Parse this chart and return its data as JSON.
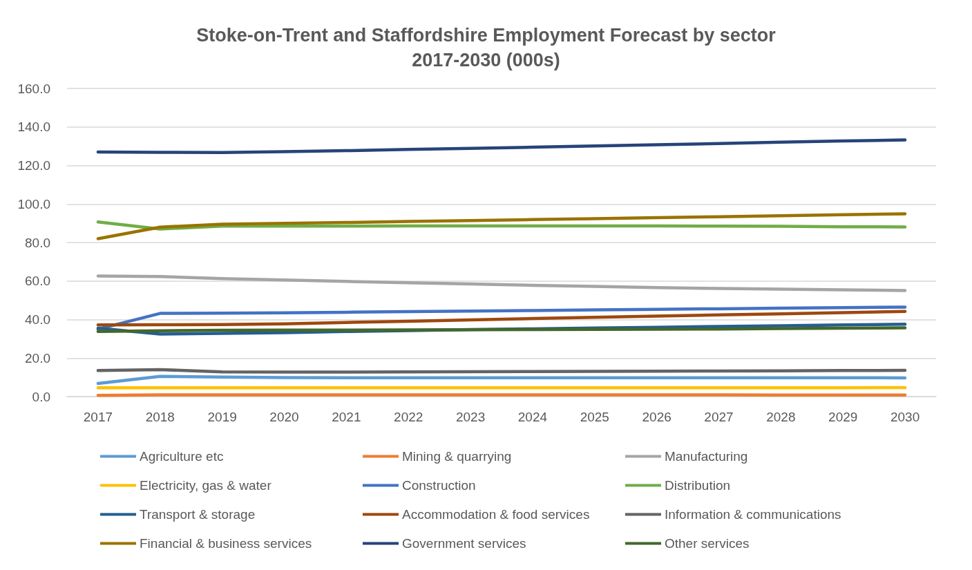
{
  "chart_data": {
    "type": "line",
    "title": "Stoke-on-Trent and Staffordshire Employment Forecast by sector\n2017-2030 (000s)",
    "categories": [
      "2017",
      "2018",
      "2019",
      "2020",
      "2021",
      "2022",
      "2023",
      "2024",
      "2025",
      "2026",
      "2027",
      "2028",
      "2029",
      "2030"
    ],
    "ylim": [
      0,
      160
    ],
    "yticks": [
      {
        "value": 0,
        "label": "0.0"
      },
      {
        "value": 20,
        "label": "20.0"
      },
      {
        "value": 40,
        "label": "40.0"
      },
      {
        "value": 60,
        "label": "60.0"
      },
      {
        "value": 80,
        "label": "80.0"
      },
      {
        "value": 100,
        "label": "100.0"
      },
      {
        "value": 120,
        "label": "120.0"
      },
      {
        "value": 140,
        "label": "140.0"
      },
      {
        "value": 160,
        "label": "160.0"
      }
    ],
    "grid": "y",
    "legend": "bottom",
    "marker": "none",
    "line_style": "solid",
    "series": [
      {
        "name": "Agriculture etc",
        "color": "#5b9bd5",
        "values": [
          6.8,
          10.5,
          10.1,
          9.9,
          9.8,
          9.8,
          9.8,
          9.8,
          9.8,
          9.8,
          9.8,
          9.8,
          9.8,
          9.7
        ]
      },
      {
        "name": "Mining & quarrying",
        "color": "#ed7d31",
        "values": [
          0.6,
          0.9,
          0.9,
          0.9,
          0.9,
          0.9,
          0.9,
          0.9,
          0.9,
          0.9,
          0.9,
          0.8,
          0.8,
          0.8
        ]
      },
      {
        "name": "Manufacturing",
        "color": "#a5a5a5",
        "values": [
          62.6,
          62.3,
          61.3,
          60.5,
          59.8,
          59.1,
          58.5,
          57.8,
          57.2,
          56.6,
          56.1,
          55.8,
          55.4,
          55.1
        ]
      },
      {
        "name": "Electricity, gas & water",
        "color": "#ffc000",
        "values": [
          4.6,
          4.6,
          4.6,
          4.6,
          4.6,
          4.6,
          4.6,
          4.6,
          4.6,
          4.6,
          4.6,
          4.6,
          4.6,
          4.7
        ]
      },
      {
        "name": "Construction",
        "color": "#4472c4",
        "values": [
          35,
          43.2,
          43.3,
          43.5,
          43.8,
          44.1,
          44.4,
          44.7,
          45,
          45.3,
          45.6,
          45.9,
          46.2,
          46.5
        ]
      },
      {
        "name": "Distribution",
        "color": "#70ad47",
        "values": [
          90.7,
          87,
          88.5,
          88.5,
          88.5,
          88.6,
          88.6,
          88.6,
          88.6,
          88.6,
          88.5,
          88.4,
          88.2,
          88.1
        ]
      },
      {
        "name": "Transport & storage",
        "color": "#255e91",
        "values": [
          35.5,
          32.5,
          32.8,
          33.2,
          33.8,
          34.3,
          34.8,
          35.2,
          35.6,
          36,
          36.4,
          36.8,
          37.2,
          37.6
        ]
      },
      {
        "name": "Accommodation & food services",
        "color": "#9e480e",
        "values": [
          37.2,
          37.3,
          37.4,
          37.8,
          38.5,
          39.1,
          39.8,
          40.5,
          41.2,
          41.8,
          42.4,
          43,
          43.6,
          44.2
        ]
      },
      {
        "name": "Information & communications",
        "color": "#636363",
        "values": [
          13.5,
          14,
          12.8,
          12.7,
          12.7,
          12.8,
          12.9,
          13,
          13.1,
          13.2,
          13.3,
          13.4,
          13.5,
          13.6
        ]
      },
      {
        "name": "Financial & business services",
        "color": "#997300",
        "values": [
          82,
          88,
          89.5,
          90,
          90.4,
          90.9,
          91.4,
          91.9,
          92.4,
          92.9,
          93.4,
          93.9,
          94.4,
          94.9
        ]
      },
      {
        "name": "Government services",
        "color": "#264478",
        "values": [
          127,
          126.8,
          126.7,
          127.2,
          127.7,
          128.3,
          128.9,
          129.5,
          130.1,
          130.8,
          131.4,
          132.1,
          132.7,
          133.3
        ]
      },
      {
        "name": "Other services",
        "color": "#43682b",
        "values": [
          33.8,
          34.2,
          34.4,
          34.5,
          34.5,
          34.6,
          34.7,
          34.8,
          34.9,
          35,
          35.1,
          35.3,
          35.5,
          35.7
        ]
      }
    ]
  }
}
